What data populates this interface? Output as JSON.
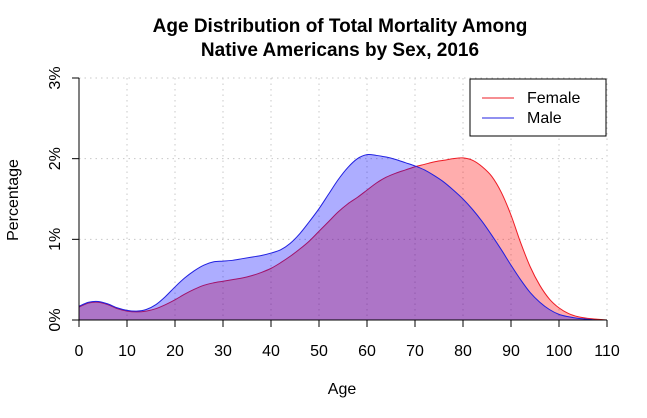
{
  "chart_data": {
    "type": "area",
    "title": [
      "Age Distribution of Total Mortality Among",
      "Native Americans by Sex, 2016"
    ],
    "xlabel": "Age",
    "ylabel": "Percentage",
    "xlim": [
      0,
      110
    ],
    "ylim": [
      0,
      3
    ],
    "x_ticks": [
      0,
      10,
      20,
      30,
      40,
      50,
      60,
      70,
      80,
      90,
      100,
      110
    ],
    "x_tick_labels": [
      "0",
      "10",
      "20",
      "30",
      "40",
      "50",
      "60",
      "70",
      "80",
      "90",
      "100",
      "110"
    ],
    "y_ticks": [
      0,
      1,
      2,
      3
    ],
    "y_tick_labels": [
      "0%",
      "1%",
      "2%",
      "3%"
    ],
    "grid": true,
    "legend_position": "top-right",
    "series": [
      {
        "name": "Female",
        "line_color": "#ee1c25",
        "fill_color": "#ff0000",
        "fill_opacity": 0.32,
        "x": [
          0,
          2,
          4,
          6,
          8,
          10,
          12,
          14,
          16,
          18,
          20,
          22,
          24,
          26,
          28,
          30,
          32,
          34,
          36,
          38,
          40,
          42,
          44,
          46,
          48,
          50,
          52,
          54,
          56,
          58,
          60,
          62,
          64,
          66,
          68,
          70,
          72,
          74,
          76,
          78,
          80,
          82,
          84,
          86,
          88,
          90,
          92,
          94,
          96,
          98,
          100,
          102,
          104,
          106,
          108,
          110
        ],
        "values": [
          0.16,
          0.21,
          0.22,
          0.19,
          0.14,
          0.11,
          0.1,
          0.11,
          0.14,
          0.19,
          0.25,
          0.32,
          0.38,
          0.43,
          0.46,
          0.48,
          0.5,
          0.52,
          0.55,
          0.59,
          0.64,
          0.71,
          0.79,
          0.88,
          0.98,
          1.1,
          1.22,
          1.34,
          1.44,
          1.52,
          1.61,
          1.7,
          1.77,
          1.82,
          1.86,
          1.9,
          1.93,
          1.96,
          1.98,
          2.0,
          2.01,
          1.98,
          1.9,
          1.78,
          1.58,
          1.3,
          0.96,
          0.66,
          0.43,
          0.26,
          0.15,
          0.08,
          0.04,
          0.02,
          0.01,
          0.0
        ]
      },
      {
        "name": "Male",
        "line_color": "#2020e0",
        "fill_color": "#0000ff",
        "fill_opacity": 0.32,
        "x": [
          0,
          2,
          4,
          6,
          8,
          10,
          12,
          14,
          16,
          18,
          20,
          22,
          24,
          26,
          28,
          30,
          32,
          34,
          36,
          38,
          40,
          42,
          44,
          46,
          48,
          50,
          52,
          54,
          56,
          58,
          60,
          62,
          64,
          66,
          68,
          70,
          72,
          74,
          76,
          78,
          80,
          82,
          84,
          86,
          88,
          90,
          92,
          94,
          96,
          98,
          100,
          102,
          104,
          106,
          108,
          110
        ],
        "values": [
          0.17,
          0.22,
          0.23,
          0.2,
          0.15,
          0.12,
          0.11,
          0.13,
          0.19,
          0.29,
          0.41,
          0.52,
          0.61,
          0.68,
          0.72,
          0.73,
          0.74,
          0.76,
          0.78,
          0.8,
          0.83,
          0.87,
          0.95,
          1.07,
          1.22,
          1.38,
          1.56,
          1.74,
          1.89,
          2.0,
          2.05,
          2.04,
          2.02,
          1.99,
          1.95,
          1.91,
          1.86,
          1.79,
          1.71,
          1.61,
          1.5,
          1.37,
          1.22,
          1.05,
          0.87,
          0.68,
          0.5,
          0.34,
          0.22,
          0.13,
          0.07,
          0.04,
          0.02,
          0.01,
          0.0,
          0.0
        ]
      }
    ]
  }
}
